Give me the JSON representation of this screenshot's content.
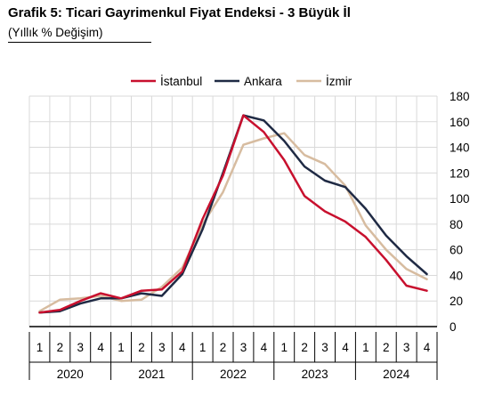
{
  "title": "Grafik 5: Ticari Gayrimenkul Fiyat Endeksi - 3 Büyük İl",
  "subtitle": "(Yıllık % Değişim)",
  "chart_data": {
    "type": "line",
    "x_quarters": [
      "1",
      "2",
      "3",
      "4",
      "1",
      "2",
      "3",
      "4",
      "1",
      "2",
      "3",
      "4",
      "1",
      "2",
      "3",
      "4",
      "1",
      "2",
      "3",
      "4"
    ],
    "x_years": [
      "2020",
      "2021",
      "2022",
      "2023",
      "2024"
    ],
    "ylim": [
      0,
      180
    ],
    "yticks": [
      0,
      20,
      40,
      60,
      80,
      100,
      120,
      140,
      160,
      180
    ],
    "legend_position": "top",
    "grid": true,
    "series": [
      {
        "name": "İstanbul",
        "color": "#c8102e",
        "values": [
          11,
          13,
          20,
          26,
          22,
          28,
          29,
          43,
          84,
          118,
          165,
          152,
          130,
          102,
          90,
          82,
          70,
          52,
          32,
          28
        ]
      },
      {
        "name": "Ankara",
        "color": "#1f2a44",
        "values": [
          11,
          12,
          18,
          22,
          22,
          26,
          24,
          41,
          76,
          120,
          165,
          161,
          145,
          125,
          114,
          109,
          92,
          71,
          55,
          41
        ]
      },
      {
        "name": "İzmir",
        "color": "#d7bca0",
        "values": [
          12,
          21,
          22,
          24,
          20,
          21,
          31,
          46,
          80,
          105,
          142,
          147,
          151,
          134,
          127,
          110,
          79,
          60,
          45,
          37
        ]
      }
    ]
  }
}
